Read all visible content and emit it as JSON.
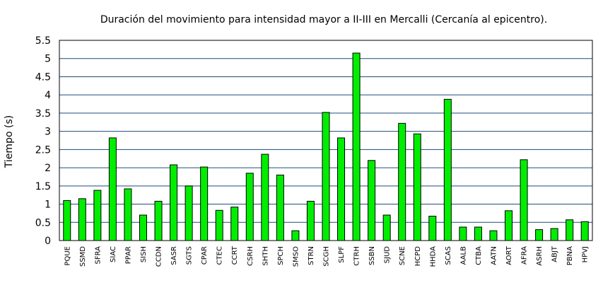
{
  "chart_data": {
    "type": "bar",
    "title": "Duración del movimiento para intensidad mayor a II-III en Mercalli (Cercanía al epicentro).",
    "xlabel": "",
    "ylabel": "Tiempo (s)",
    "ylim": [
      0,
      5.5
    ],
    "yticks": [
      "0",
      "0.5",
      "1",
      "1.5",
      "2",
      "2.5",
      "3",
      "3.5",
      "4",
      "4.5",
      "5",
      "5.5"
    ],
    "grid": true,
    "bar_color": "#00ee00",
    "grid_color": "#1f4e79",
    "categories": [
      "PQUE",
      "SSMD",
      "SFRA",
      "SIAC",
      "PPAR",
      "SISH",
      "CCDN",
      "SASR",
      "SGTS",
      "CPAR",
      "CTEC",
      "CCRT",
      "CSRH",
      "SHTH",
      "SPCH",
      "SMSO",
      "STRN",
      "SCGH",
      "SLPF",
      "CTRH",
      "SSBN",
      "SJUD",
      "SCNE",
      "HCPD",
      "HHDA",
      "SCAS",
      "AALB",
      "CTBA",
      "AATN",
      "AORT",
      "AFRA",
      "ASRH",
      "ABJT",
      "PBNA",
      "HPVJ"
    ],
    "values": [
      1.1,
      1.15,
      1.38,
      2.82,
      1.42,
      0.7,
      1.08,
      2.08,
      1.5,
      2.02,
      0.83,
      0.92,
      1.85,
      2.37,
      1.8,
      0.27,
      1.08,
      3.52,
      2.82,
      5.15,
      2.2,
      0.7,
      3.22,
      2.93,
      0.67,
      3.88,
      0.37,
      0.37,
      0.27,
      0.82,
      2.22,
      0.3,
      0.33,
      0.57,
      0.52
    ]
  }
}
